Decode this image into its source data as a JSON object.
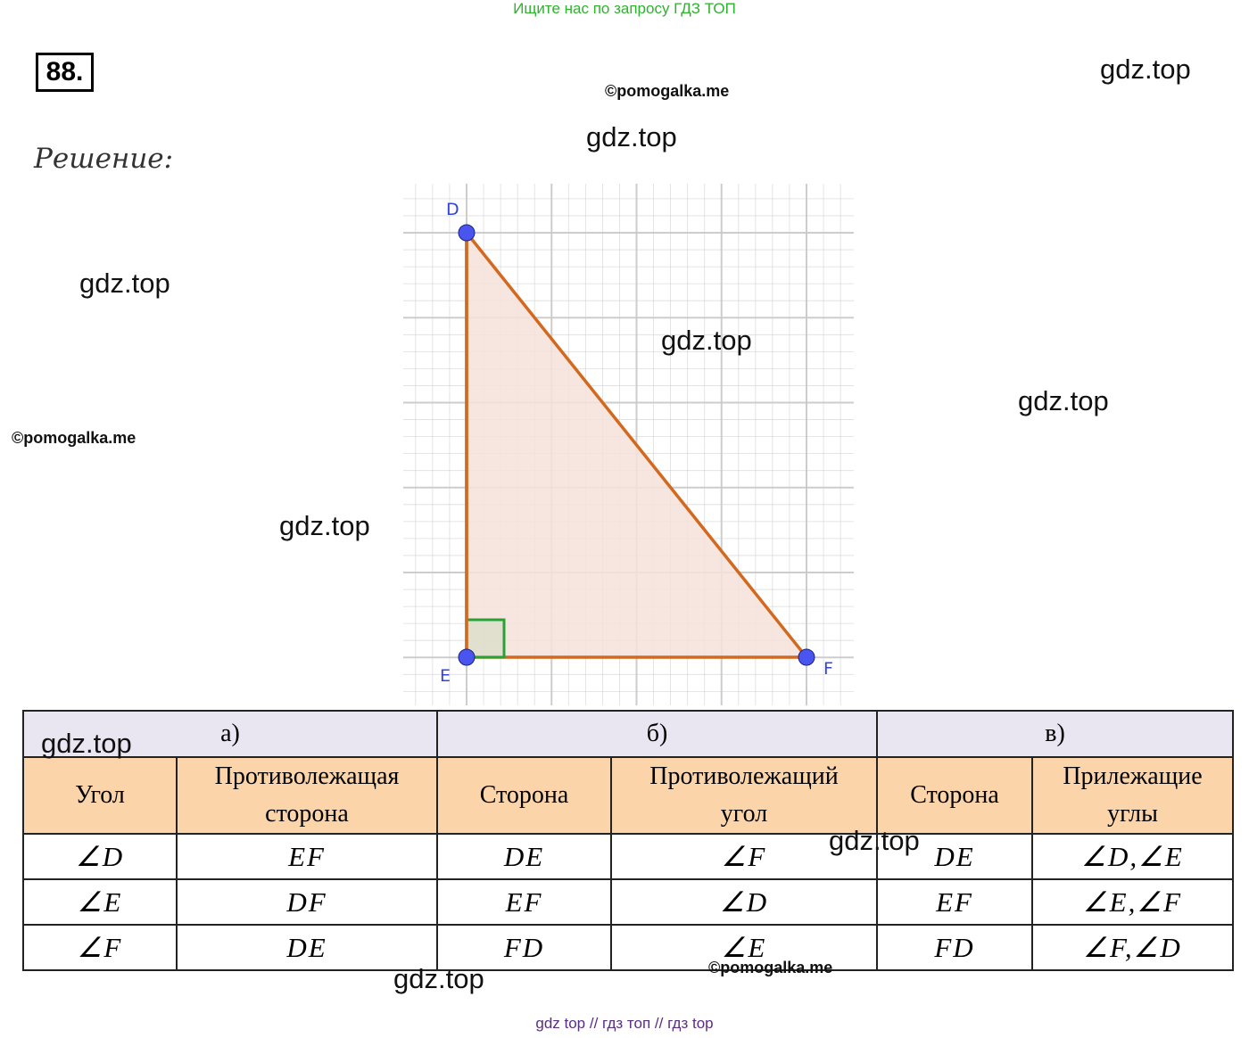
{
  "banner": {
    "text": "Ищите нас по запросу ГДЗ ТОП"
  },
  "problem": {
    "number": "88."
  },
  "solution_label": "Решение:",
  "watermarks": {
    "gdz": "gdz.top",
    "pomogalka": "©pomogalka.me"
  },
  "figure": {
    "points": {
      "D": "D",
      "E": "E",
      "F": "F"
    },
    "colors": {
      "triangle_stroke": "#d2691e",
      "triangle_fill": "#f6e2da",
      "point": "#4a55f0",
      "right_angle": "#27a335",
      "grid": "#c8c8c8"
    }
  },
  "table": {
    "sections": [
      "а)",
      "б)",
      "в)"
    ],
    "headers": [
      [
        "Угол"
      ],
      [
        "Противолежащая",
        "сторона"
      ],
      [
        "Сторона"
      ],
      [
        "Противолежащий",
        "угол"
      ],
      [
        "Сторона"
      ],
      [
        "Прилежащие",
        "углы"
      ]
    ],
    "rows": [
      [
        "∠D",
        "EF",
        "DE",
        "∠F",
        "DE",
        "∠D,∠E"
      ],
      [
        "∠E",
        "DF",
        "EF",
        "∠D",
        "EF",
        "∠E,∠F"
      ],
      [
        "∠F",
        "DE",
        "FD",
        "∠E",
        "FD",
        "∠F,∠D"
      ]
    ],
    "colors": {
      "section_bg": "#e9e6f2",
      "header_bg": "#fcd4aa"
    }
  },
  "footer": {
    "links": [
      "gdz top",
      "//",
      "гдз топ",
      "//",
      "гдз top"
    ]
  }
}
